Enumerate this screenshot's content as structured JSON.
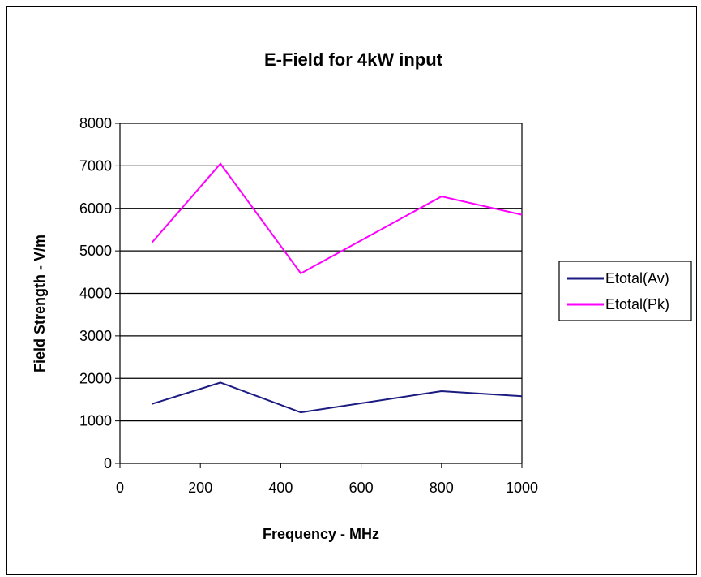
{
  "chart_data": {
    "type": "line",
    "title": "E-Field for 4kW input",
    "xlabel": "Frequency - MHz",
    "ylabel": "Field Strength - V/m",
    "xlim": [
      0,
      1000
    ],
    "ylim": [
      0,
      8000
    ],
    "x_ticks": [
      0,
      200,
      400,
      600,
      800,
      1000
    ],
    "y_ticks": [
      0,
      1000,
      2000,
      3000,
      4000,
      5000,
      6000,
      7000,
      8000
    ],
    "grid": "horizontal",
    "legend_position": "right",
    "series": [
      {
        "name": "Etotal(Av)",
        "color": "#1a1a80",
        "x": [
          80,
          250,
          450,
          800,
          1000
        ],
        "y": [
          1400,
          1900,
          1200,
          1700,
          1580
        ]
      },
      {
        "name": "Etotal(Pk)",
        "color": "#ff00ff",
        "x": [
          80,
          250,
          450,
          800,
          1000
        ],
        "y": [
          5200,
          7050,
          4470,
          6280,
          5850
        ]
      }
    ]
  }
}
